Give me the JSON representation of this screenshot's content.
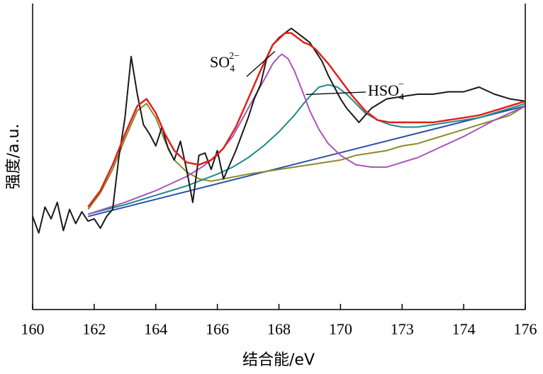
{
  "chart_data": {
    "type": "line",
    "xlabel": "结合能/eV",
    "ylabel": "强度/a.u.",
    "x_tick_labels": [
      "160",
      "162",
      "164",
      "166",
      "168",
      "170",
      "173",
      "174",
      "176"
    ],
    "xlim": [
      160,
      176
    ],
    "ylim": [
      0,
      100
    ],
    "grid": false,
    "legend": "none",
    "annotations": [
      {
        "text": "SO",
        "sub": "4",
        "sup": "2−",
        "points_to_series": "so4",
        "at_x": 168.1
      },
      {
        "text": "HSO",
        "sub": "4",
        "sup": "−",
        "points_to_series": "hso4",
        "at_x": 169.2
      }
    ],
    "series": [
      {
        "id": "raw",
        "color": "#1a1a1a",
        "x": [
          160.0,
          160.2,
          160.4,
          160.6,
          160.8,
          161.0,
          161.2,
          161.4,
          161.6,
          161.8,
          162.0,
          162.2,
          162.4,
          162.6,
          162.8,
          163.0,
          163.2,
          163.4,
          163.6,
          163.8,
          164.0,
          164.2,
          164.4,
          164.6,
          164.8,
          165.0,
          165.2,
          165.4,
          165.6,
          165.8,
          166.0,
          166.2,
          166.4,
          166.6,
          166.8,
          167.0,
          167.2,
          167.4,
          167.6,
          167.8,
          168.0,
          168.2,
          168.4,
          168.6,
          168.8,
          169.0,
          169.2,
          169.4,
          169.6,
          169.8,
          170.0,
          170.2,
          170.4,
          170.6,
          170.8,
          171.0,
          171.5,
          172.0,
          172.5,
          173.0,
          173.5,
          174.0,
          174.5,
          175.0,
          175.5,
          176.0
        ],
        "y": [
          20,
          13,
          24,
          19,
          26,
          14,
          23,
          17,
          22,
          18,
          19,
          15,
          20,
          23,
          45,
          62,
          88,
          72,
          59,
          55,
          50,
          58,
          49,
          44,
          52,
          40,
          26,
          46,
          47,
          40,
          48,
          36,
          42,
          48,
          55,
          62,
          70,
          76,
          87,
          93,
          96,
          98,
          100,
          98,
          96,
          94,
          90,
          86,
          80,
          75,
          70,
          66,
          63,
          60,
          63,
          66,
          70,
          71,
          72,
          72,
          73,
          73,
          75,
          72,
          70,
          69
        ]
      },
      {
        "id": "fit",
        "color": "#e0201b",
        "x": [
          161.8,
          162.2,
          162.6,
          163.0,
          163.4,
          163.7,
          164.0,
          164.3,
          164.6,
          165.0,
          165.4,
          165.8,
          166.2,
          166.6,
          167.0,
          167.4,
          167.8,
          168.2,
          168.4,
          168.6,
          168.8,
          169.0,
          169.2,
          169.6,
          170.0,
          170.4,
          170.8,
          171.2,
          171.6,
          172.0,
          172.5,
          173.0,
          173.5,
          174.0,
          174.5,
          175.0,
          175.5,
          176.0
        ],
        "y": [
          24,
          31,
          42,
          55,
          67,
          70,
          64,
          55,
          48,
          43,
          42,
          44,
          49,
          58,
          70,
          82,
          93,
          98,
          98,
          96,
          94,
          93,
          91,
          85,
          78,
          71,
          65,
          61,
          60,
          60,
          60,
          60,
          61,
          62,
          63,
          65,
          67,
          69
        ]
      },
      {
        "id": "s2p",
        "color": "#8a8a2e",
        "x": [
          161.8,
          162.2,
          162.6,
          163.0,
          163.4,
          163.7,
          164.0,
          164.3,
          164.6,
          165.0,
          165.4,
          165.8,
          166.2,
          166.6,
          167.0,
          167.5,
          168.0,
          168.5,
          169.0,
          169.5,
          170.0,
          170.5,
          171.0,
          171.5,
          172.0,
          172.5,
          173.0,
          173.5,
          174.0,
          174.5,
          175.0,
          175.5,
          176.0
        ],
        "y": [
          23,
          30,
          40,
          53,
          65,
          68,
          62,
          52,
          44,
          39,
          36,
          35,
          36,
          37,
          38,
          39,
          40,
          41,
          42,
          43,
          44,
          46,
          47,
          48,
          50,
          51,
          53,
          55,
          57,
          59,
          61,
          63,
          67
        ]
      },
      {
        "id": "so4",
        "color": "#a855b8",
        "x": [
          161.8,
          163.0,
          164.0,
          165.0,
          165.5,
          166.0,
          166.5,
          167.0,
          167.3,
          167.6,
          167.8,
          168.0,
          168.1,
          168.3,
          168.5,
          168.8,
          169.0,
          169.3,
          169.6,
          170.0,
          170.5,
          171.0,
          171.5,
          172.0,
          172.5,
          173.0,
          174.0,
          175.0,
          176.0
        ],
        "y": [
          21,
          26,
          31,
          37,
          41,
          46,
          54,
          66,
          73,
          80,
          85,
          88,
          89,
          87,
          82,
          72,
          65,
          57,
          51,
          46,
          42,
          41,
          41,
          43,
          45,
          48,
          54,
          61,
          67
        ]
      },
      {
        "id": "hso4",
        "color": "#1e8a8a",
        "x": [
          161.8,
          163.0,
          164.0,
          165.0,
          166.0,
          166.5,
          167.0,
          167.5,
          168.0,
          168.5,
          168.8,
          169.0,
          169.3,
          169.6,
          169.9,
          170.2,
          170.5,
          170.8,
          171.2,
          171.6,
          172.0,
          172.5,
          173.0,
          173.5,
          174.0,
          174.5,
          175.0,
          175.5,
          176.0
        ],
        "y": [
          21,
          25,
          29,
          33,
          38,
          41,
          45,
          50,
          56,
          63,
          68,
          71,
          75,
          76,
          75,
          72,
          68,
          64,
          61,
          59,
          58,
          58,
          59,
          60,
          61,
          62,
          64,
          66,
          68
        ]
      },
      {
        "id": "bg",
        "color": "#2a4fa8",
        "x": [
          161.8,
          176.0
        ],
        "y": [
          20,
          67
        ]
      }
    ]
  }
}
